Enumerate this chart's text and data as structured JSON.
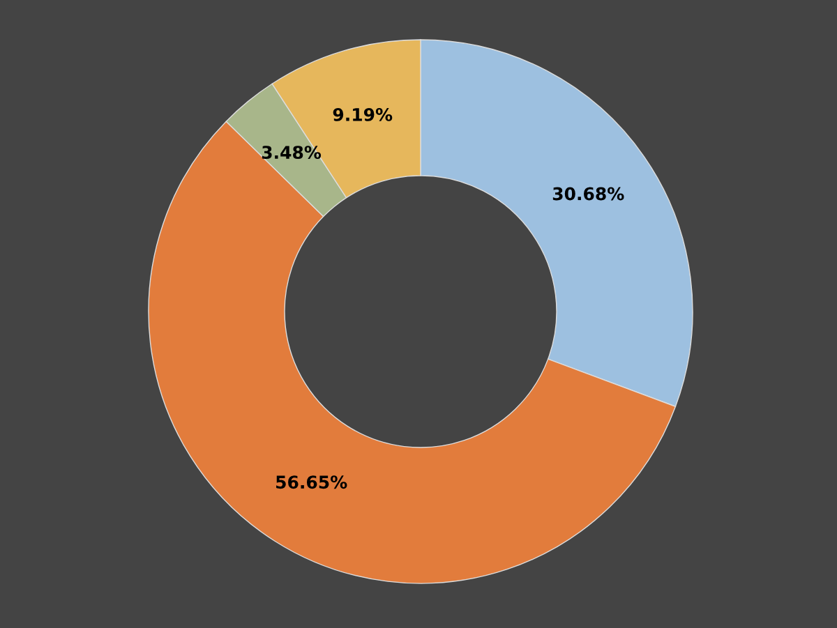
{
  "chart_data": {
    "type": "donut",
    "categories": [
      null,
      null,
      null,
      null
    ],
    "values": [
      30.68,
      56.65,
      3.48,
      9.19
    ],
    "colors": [
      "#9dc0e0",
      "#e27c3c",
      "#a8b68a",
      "#e6b75c"
    ],
    "value_labels": [
      "30.68%",
      "56.65%",
      "3.48%",
      "9.19%"
    ],
    "legend": false
  }
}
